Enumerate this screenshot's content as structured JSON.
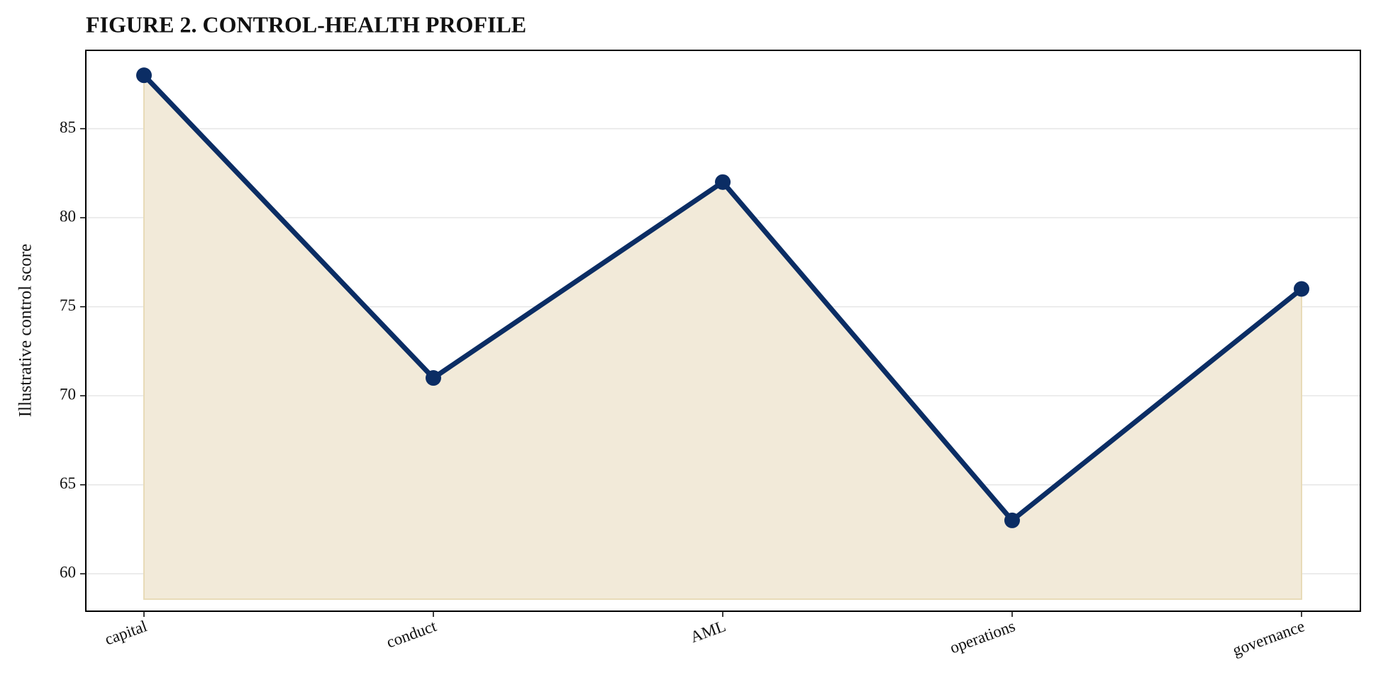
{
  "chart_data": {
    "type": "line",
    "title": "FIGURE 2. CONTROL-HEALTH PROFILE",
    "y_label": "Illustrative control score",
    "categories": [
      "capital",
      "conduct",
      "AML",
      "operations",
      "governance"
    ],
    "values": [
      88,
      71,
      82,
      63,
      76
    ],
    "color": "#0b2d64",
    "fill_color": "#f2ead9",
    "ylim": [
      57.9,
      89.4
    ],
    "yticks": [
      60,
      65,
      70,
      75,
      80,
      85
    ],
    "grid": true
  }
}
